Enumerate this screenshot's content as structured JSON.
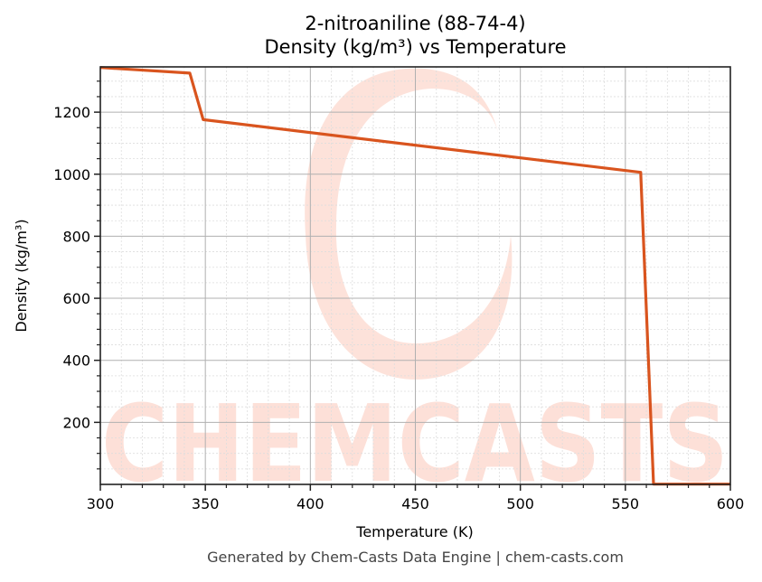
{
  "chart_data": {
    "type": "line",
    "title": "2-nitroaniline (88-74-4)",
    "subtitle": "Density (kg/m³) vs Temperature",
    "xlabel": "Temperature (K)",
    "ylabel": "Density (kg/m³)",
    "xlim": [
      300,
      600
    ],
    "ylim": [
      0,
      1346
    ],
    "xticks": [
      300,
      350,
      400,
      450,
      500,
      550,
      600
    ],
    "xtick_labels": [
      "300",
      "350",
      "400",
      "450",
      "500",
      "550",
      "600"
    ],
    "yticks": [
      200,
      400,
      600,
      800,
      1000,
      1200
    ],
    "ytick_labels": [
      "200",
      "400",
      "600",
      "800",
      "1000",
      "1200"
    ],
    "x_minor_step": 10,
    "y_minor_step": 50,
    "grid": true,
    "legend": null,
    "series": [
      {
        "name": "Density",
        "color": "#d9541e",
        "x": [
          300,
          342.6,
          349.0,
          557.3,
          563.4,
          600
        ],
        "y": [
          1344,
          1326,
          1176,
          1006,
          1,
          1
        ]
      }
    ]
  },
  "header": {
    "title_line1": "2-nitroaniline (88-74-4)",
    "title_line2": "Density (kg/m³) vs Temperature"
  },
  "axes": {
    "xlabel": "Temperature (K)",
    "ylabel": "Density (kg/m³)"
  },
  "watermark": {
    "text": "CHEMCASTS",
    "color": "#fbd3c9"
  },
  "footer": {
    "text": "Generated by Chem-Casts Data Engine | chem-casts.com"
  },
  "colors": {
    "line": "#d9541e",
    "watermark": "#fde0d8",
    "major_grid": "#b0b0b0",
    "minor_grid": "#dddddd",
    "axis": "#222222"
  }
}
